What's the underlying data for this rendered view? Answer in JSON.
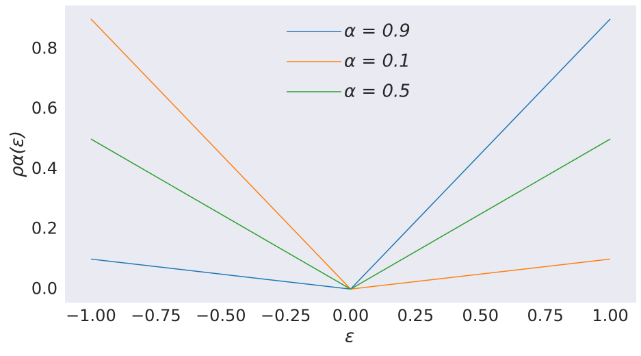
{
  "chart_data": {
    "type": "line",
    "xlabel": "ε",
    "ylabel": "ρα(ε)",
    "x": [
      -1,
      0,
      1
    ],
    "series": [
      {
        "name": "α = 0.9",
        "color": "#1f77b4",
        "values": [
          0.1,
          0,
          0.9
        ]
      },
      {
        "name": "α = 0.1",
        "color": "#ff7f0e",
        "values": [
          0.9,
          0,
          0.1
        ]
      },
      {
        "name": "α = 0.5",
        "color": "#2ca02c",
        "values": [
          0.5,
          0,
          0.5
        ]
      }
    ],
    "xlim": [
      -1.1,
      1.1
    ],
    "ylim": [
      -0.045,
      0.945
    ],
    "xticks": [
      {
        "value": -1,
        "label": "−1.00"
      },
      {
        "value": -0.75,
        "label": "−0.75"
      },
      {
        "value": -0.5,
        "label": "−0.50"
      },
      {
        "value": -0.25,
        "label": "−0.25"
      },
      {
        "value": 0,
        "label": "0.00"
      },
      {
        "value": 0.25,
        "label": "0.25"
      },
      {
        "value": 0.5,
        "label": "0.50"
      },
      {
        "value": 0.75,
        "label": "0.75"
      },
      {
        "value": 1,
        "label": "1.00"
      }
    ],
    "yticks": [
      {
        "value": 0,
        "label": "0.0"
      },
      {
        "value": 0.2,
        "label": "0.2"
      },
      {
        "value": 0.4,
        "label": "0.4"
      },
      {
        "value": 0.6,
        "label": "0.6"
      },
      {
        "value": 0.8,
        "label": "0.8"
      }
    ],
    "grid": false,
    "legend": "upper center",
    "background": "#eaeaf2"
  }
}
